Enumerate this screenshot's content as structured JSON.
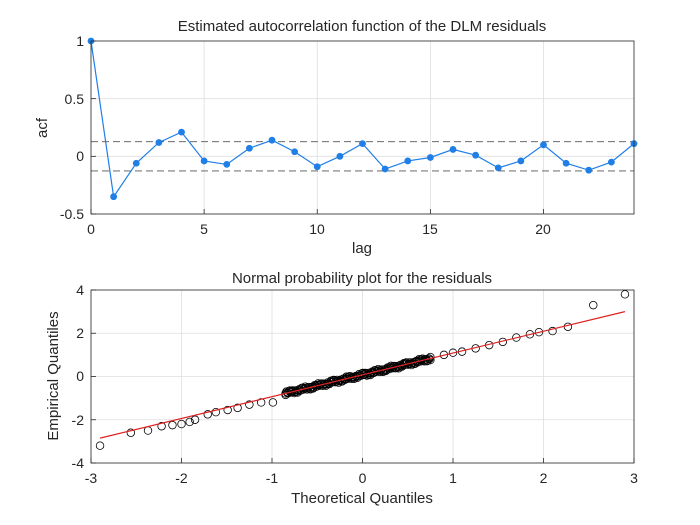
{
  "chart_data": [
    {
      "type": "line",
      "title": "Estimated autocorrelation function of the DLM residuals",
      "xlabel": "lag",
      "ylabel": "acf",
      "xlim": [
        0,
        24
      ],
      "ylim": [
        -0.5,
        1
      ],
      "xticks": [
        "0",
        "5",
        "10",
        "15",
        "20"
      ],
      "yticks": [
        "-0.5",
        "0",
        "0.5",
        "1"
      ],
      "grid": true,
      "marker_color": "#1f7fe6",
      "confidence_bounds": [
        0.127,
        -0.127
      ],
      "x": [
        0,
        1,
        2,
        3,
        4,
        5,
        6,
        7,
        8,
        9,
        10,
        11,
        12,
        13,
        14,
        15,
        16,
        17,
        18,
        19,
        20,
        21,
        22,
        23,
        24
      ],
      "values": [
        1.0,
        -0.35,
        -0.06,
        0.12,
        0.21,
        -0.04,
        -0.07,
        0.07,
        0.14,
        0.04,
        -0.09,
        0.0,
        0.11,
        -0.11,
        -0.04,
        -0.01,
        0.06,
        0.01,
        -0.1,
        -0.04,
        0.1,
        -0.06,
        -0.12,
        -0.05,
        0.11
      ]
    },
    {
      "type": "scatter",
      "title": "Normal probability plot for the residuals",
      "xlabel": "Theoretical Quantiles",
      "ylabel": "Empirical Quantiles",
      "xlim": [
        -3,
        3
      ],
      "ylim": [
        -4,
        4
      ],
      "xticks": [
        "-3",
        "-2",
        "-1",
        "0",
        "1",
        "2",
        "3"
      ],
      "yticks": [
        "-4",
        "-2",
        "0",
        "2",
        "4"
      ],
      "grid": true,
      "fit_line_color": "#e02020",
      "fit_line": {
        "x": [
          -2.9,
          2.9
        ],
        "y": [
          -2.85,
          3.0
        ]
      },
      "n_points": 200,
      "points_x": [
        -2.9,
        -2.56,
        -2.37,
        -2.22,
        -2.1,
        -2.0,
        -1.91,
        -1.85,
        -1.71,
        -1.62,
        -1.49,
        -1.38,
        -1.25,
        -1.12,
        -0.99,
        -0.85,
        0.75,
        0.9,
        1.0,
        1.1,
        1.25,
        1.4,
        1.55,
        1.7,
        1.85,
        1.95,
        2.1,
        2.27,
        2.55,
        2.9
      ],
      "points_y": [
        -3.2,
        -2.6,
        -2.5,
        -2.3,
        -2.25,
        -2.2,
        -2.1,
        -2.0,
        -1.75,
        -1.65,
        -1.55,
        -1.45,
        -1.3,
        -1.2,
        -1.2,
        -0.85,
        0.9,
        1.0,
        1.1,
        1.15,
        1.3,
        1.45,
        1.6,
        1.8,
        1.95,
        2.05,
        2.1,
        2.3,
        3.3,
        3.8
      ]
    }
  ]
}
